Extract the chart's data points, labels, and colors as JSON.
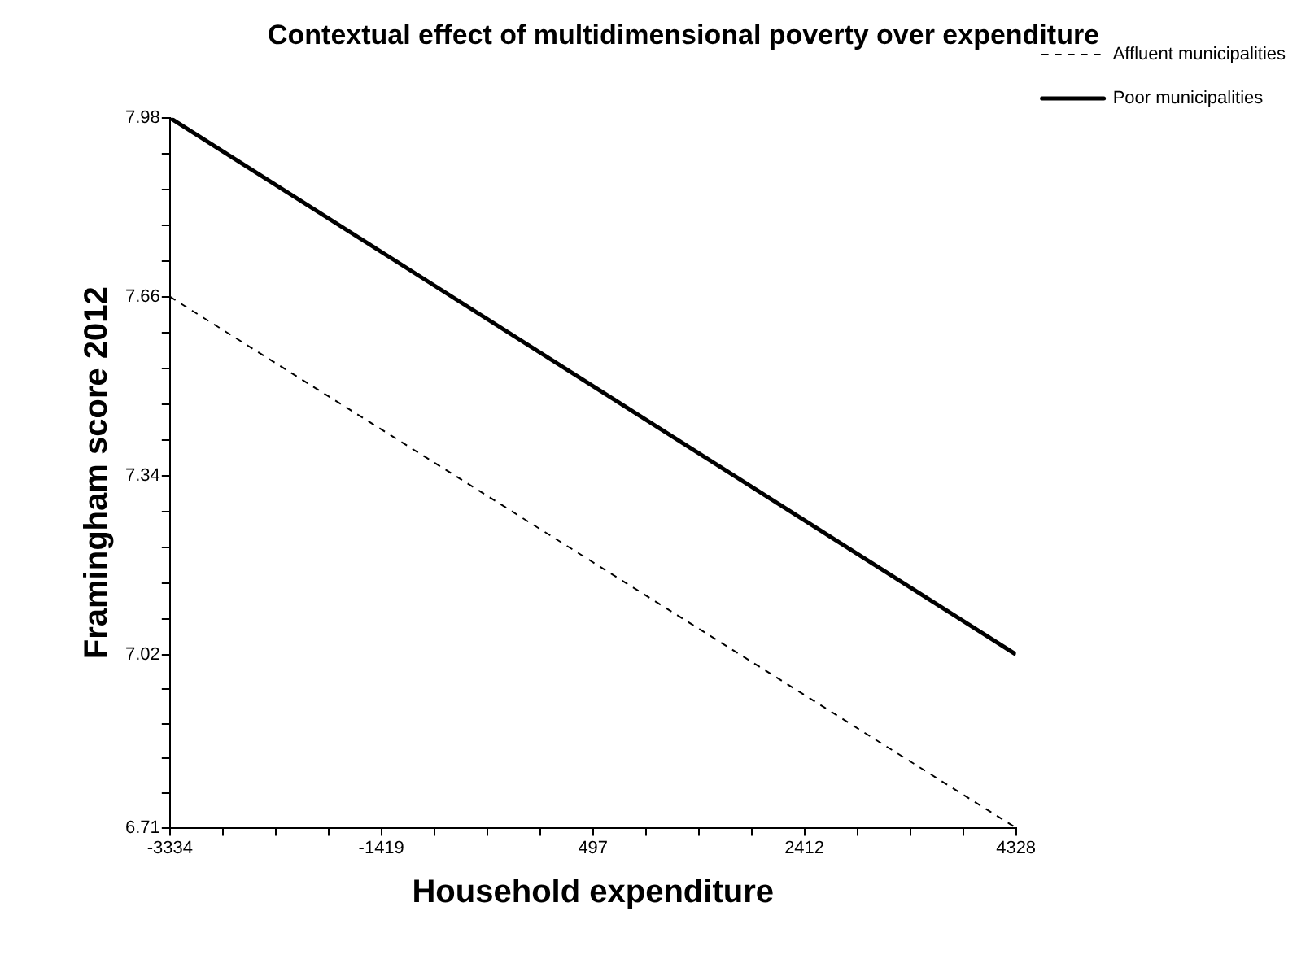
{
  "chart_data": {
    "type": "line",
    "title": "Contextual effect of multidimensional poverty over expenditure",
    "xlabel": "Household expenditure",
    "ylabel": "Framingham score 2012",
    "x": [
      -3334,
      4328
    ],
    "series": [
      {
        "name": "Affluent municipalities",
        "color": "#000000",
        "line_style": "dashed",
        "values": [
          7.66,
          6.71
        ]
      },
      {
        "name": "Poor municipalities",
        "color": "#000000",
        "line_style": "solid",
        "values": [
          7.98,
          7.02
        ]
      }
    ],
    "xlim": [
      -3334,
      4328
    ],
    "xticks": [
      -3334,
      {
        "value": -2855,
        "label": null
      },
      {
        "value": -2376,
        "label": null
      },
      {
        "value": -1898,
        "label": null
      },
      -1419,
      {
        "value": -940,
        "label": null
      },
      {
        "value": -460,
        "label": null
      },
      {
        "value": 18,
        "label": null
      },
      497,
      {
        "value": 976,
        "label": null
      },
      {
        "value": 1455,
        "label": null
      },
      {
        "value": 1933,
        "label": null
      },
      2412,
      {
        "value": 2891,
        "label": null
      },
      {
        "value": 3370,
        "label": null
      },
      {
        "value": 3849,
        "label": null
      },
      4328
    ],
    "ylim": [
      6.71,
      7.98
    ],
    "yticks": [
      6.71,
      {
        "value": 6.772,
        "label": null
      },
      {
        "value": 6.834,
        "label": null
      },
      {
        "value": 6.896,
        "label": null
      },
      {
        "value": 6.958,
        "label": null
      },
      7.02,
      {
        "value": 7.084,
        "label": null
      },
      {
        "value": 7.148,
        "label": null
      },
      {
        "value": 7.212,
        "label": null
      },
      {
        "value": 7.276,
        "label": null
      },
      7.34,
      {
        "value": 7.404,
        "label": null
      },
      {
        "value": 7.468,
        "label": null
      },
      {
        "value": 7.532,
        "label": null
      },
      {
        "value": 7.596,
        "label": null
      },
      7.66,
      {
        "value": 7.724,
        "label": null
      },
      {
        "value": 7.788,
        "label": null
      },
      {
        "value": 7.852,
        "label": null
      },
      {
        "value": 7.916,
        "label": null
      },
      7.98
    ],
    "grid": false,
    "legend": "top right",
    "marker": "none"
  }
}
